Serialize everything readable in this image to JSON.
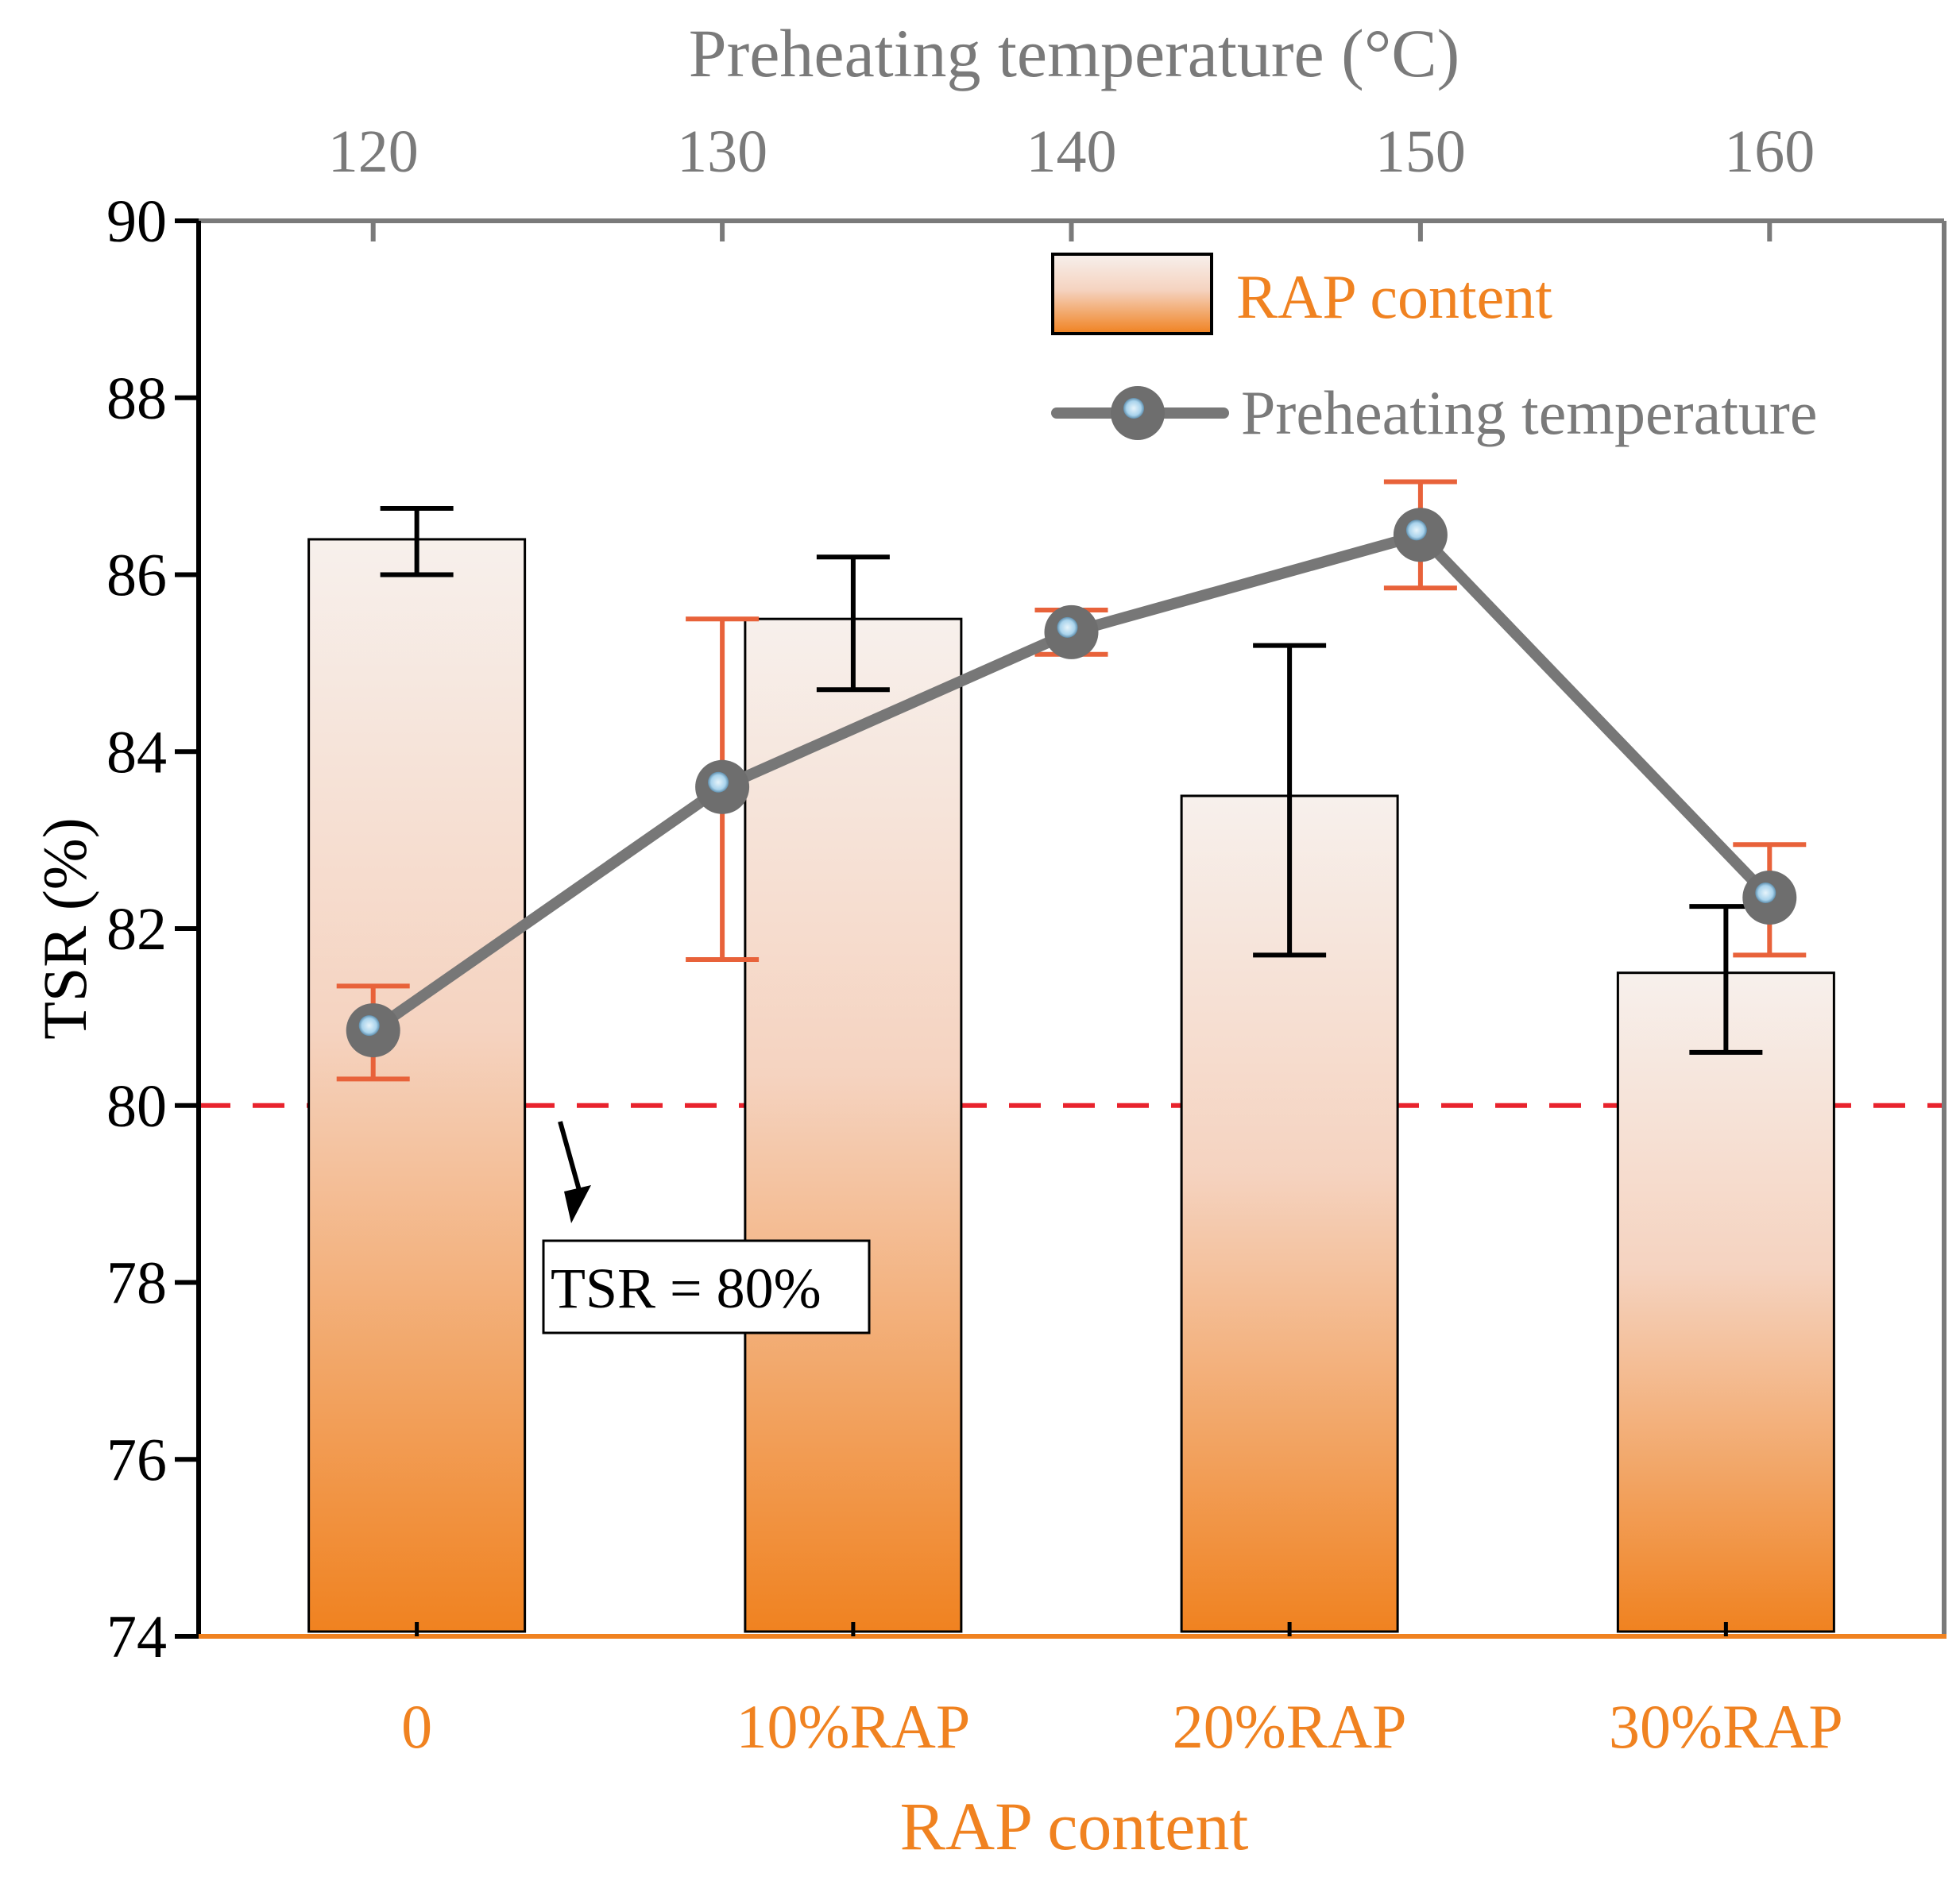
{
  "chart_data": {
    "type": "bar",
    "colors": {
      "bar_top": "#f7f0ec",
      "bar_bottom": "#f08220",
      "bar_edge": "#000000",
      "bar_error": "#000000",
      "line": "#777777",
      "line_error": "#e8623a",
      "marker_fill": "#6e6e6e",
      "marker_center": "#a9d3ec",
      "threshold": "#e8232d",
      "rap_axis": "#f08220",
      "temp_axis": "#7a7a7a",
      "left_axis": "#000000"
    },
    "y_axis": {
      "label": "TSR (%)",
      "min": 74,
      "max": 90,
      "ticks": [
        "74",
        "76",
        "78",
        "80",
        "82",
        "84",
        "86",
        "88",
        "90"
      ]
    },
    "bottom_axis": {
      "label": "RAP content",
      "categories": [
        "0",
        "10%RAP",
        "20%RAP",
        "30%RAP"
      ]
    },
    "top_axis": {
      "label": "Preheating temperature (°C)",
      "min": 115,
      "max": 165,
      "ticks": [
        "120",
        "130",
        "140",
        "150",
        "160"
      ]
    },
    "series": [
      {
        "name": "RAP content",
        "kind": "bar",
        "categories": [
          "0",
          "10%RAP",
          "20%RAP",
          "30%RAP"
        ],
        "values": [
          86.4,
          85.5,
          83.5,
          81.5
        ],
        "error_low": [
          86.0,
          84.7,
          81.7,
          80.6
        ],
        "error_high": [
          86.75,
          86.2,
          85.2,
          82.25
        ]
      },
      {
        "name": "Preheating temperature",
        "kind": "line",
        "x": [
          120,
          130,
          140,
          150,
          160
        ],
        "values": [
          80.85,
          83.6,
          85.35,
          86.45,
          82.35
        ],
        "error_low": [
          80.3,
          81.65,
          85.1,
          85.85,
          81.7
        ],
        "error_high": [
          81.35,
          85.5,
          85.6,
          87.05,
          82.95
        ]
      }
    ],
    "threshold": {
      "value": 80,
      "label": "TSR = 80%"
    },
    "legend": {
      "placement": "top-right",
      "bar_label": "RAP content",
      "line_label": "Preheating temperature"
    },
    "grid": false
  }
}
